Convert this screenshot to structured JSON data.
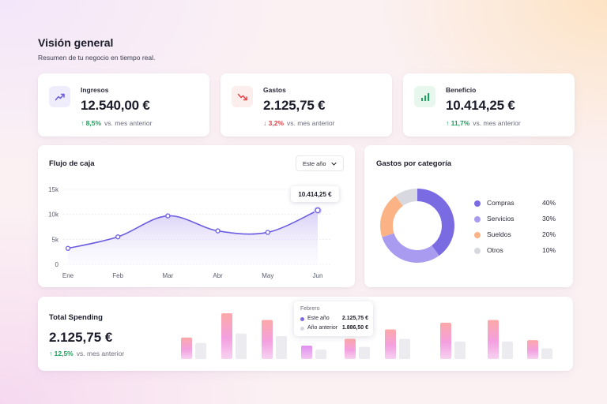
{
  "header": {
    "title": "Visión general",
    "subtitle": "Resumen de tu negocio en tiempo real."
  },
  "kpis": [
    {
      "label": "Ingresos",
      "value": "12.540,00 €",
      "delta": "8,5%",
      "direction": "up",
      "comparison": "vs. mes anterior",
      "icon": "trending-up-icon",
      "icon_color": "#6b5de0",
      "icon_bg": "#efedfc"
    },
    {
      "label": "Gastos",
      "value": "2.125,75 €",
      "delta": "3,2%",
      "direction": "down",
      "comparison": "vs. mes anterior",
      "icon": "trending-down-icon",
      "icon_color": "#e0454a",
      "icon_bg": "#fdeeee"
    },
    {
      "label": "Beneficio",
      "value": "10.414,25 €",
      "delta": "11,7%",
      "direction": "up",
      "comparison": "vs. mes anterior",
      "icon": "bar-chart-icon",
      "icon_color": "#17a35b",
      "icon_bg": "#e8f7ee"
    }
  ],
  "cashflow": {
    "title": "Flujo de caja",
    "period_select": "Este año",
    "tooltip_value": "10.414,25 €"
  },
  "category": {
    "title": "Gastos por categoría"
  },
  "spending": {
    "title": "Total Spending",
    "value": "2.125,75 €",
    "delta": "12,5%",
    "direction": "up",
    "comparison": "vs. mes anterior",
    "tooltip": {
      "month": "Febrero",
      "rows": [
        {
          "name": "Este año",
          "value": "2.125,75 €",
          "color": "#7b6be3"
        },
        {
          "name": "Año anterior",
          "value": "1.886,50 €",
          "color": "#d8d8e2"
        }
      ]
    }
  },
  "colors": {
    "accent": "#6b5de0",
    "positive": "#17a35b",
    "negative": "#e0454a"
  },
  "chart_data": [
    {
      "type": "line",
      "x": [
        "Ene",
        "Feb",
        "Mar",
        "Abr",
        "May",
        "Jun"
      ],
      "y_ticks": [
        "0",
        "5k",
        "10k",
        "15k"
      ],
      "ylim": [
        0,
        15000
      ],
      "series": [
        {
          "values": [
            3200,
            5500,
            9700,
            6700,
            6400,
            10800
          ]
        }
      ],
      "grid": true,
      "area_fill": true
    },
    {
      "type": "pie",
      "donut": true,
      "slices": [
        {
          "label": "Compras",
          "value": 40,
          "display": "40%",
          "color": "#7b6be3"
        },
        {
          "label": "Servicios",
          "value": 30,
          "display": "30%",
          "color": "#a99cf0"
        },
        {
          "label": "Sueldos",
          "value": 20,
          "display": "20%",
          "color": "#fbb386"
        },
        {
          "label": "Otros",
          "value": 10,
          "display": "10%",
          "color": "#d8d8e0"
        }
      ]
    },
    {
      "type": "bar",
      "categories_count": 9,
      "series": [
        {
          "name": "Este año",
          "values": [
            1600,
            3400,
            2900,
            1000,
            1500,
            2200,
            2700,
            2900,
            1400
          ]
        },
        {
          "name": "Año anterior",
          "values": [
            1200,
            1900,
            1700,
            700,
            900,
            1500,
            1300,
            1300,
            800
          ]
        }
      ],
      "highlighted_index": 3
    }
  ]
}
